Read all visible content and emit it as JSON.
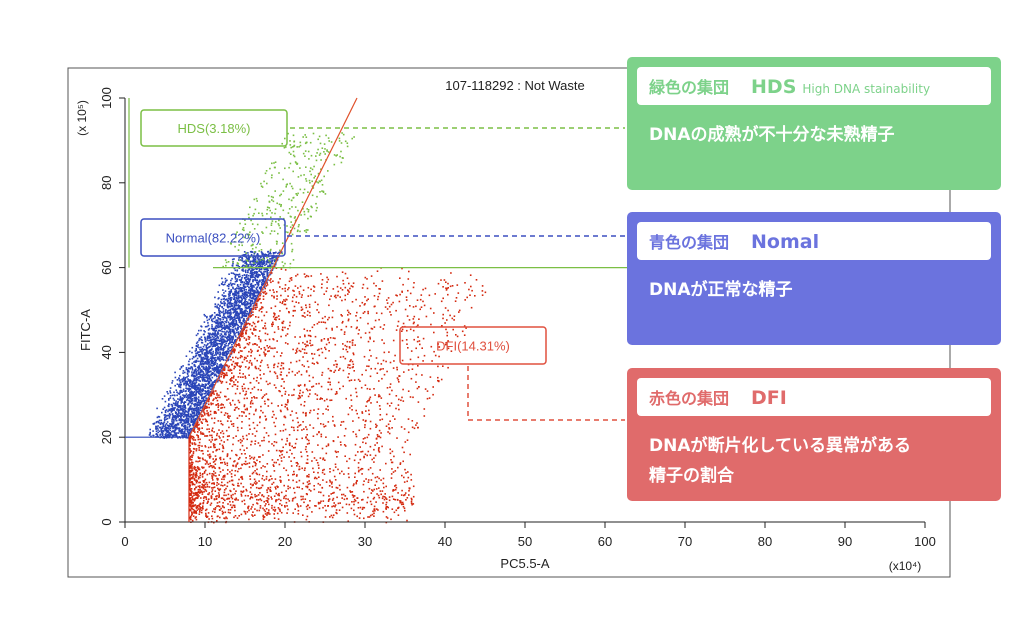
{
  "chart_data": {
    "type": "scatter",
    "title": "107-118292 : Not Waste",
    "x_label": "PC5.5-A",
    "y_label": "FITC-A",
    "x_multiplier": "(x10⁴)",
    "y_multiplier": "(x 10⁵)",
    "xlim": [
      0,
      100
    ],
    "xticks": [
      0,
      10,
      20,
      30,
      40,
      50,
      60,
      70,
      80,
      90,
      100
    ],
    "ylim": [
      0,
      100
    ],
    "yticks": [
      0,
      20,
      40,
      60,
      80,
      100
    ],
    "gates": {
      "hds_y": 60,
      "low_y": 20,
      "left_x": 8,
      "diagonal_top_x": 29
    },
    "annotations": [
      "HDS(3.18%)",
      "Normal(82.22%)",
      "DFI(14.31%)"
    ]
  },
  "callouts": [
    {
      "heading": "緑色の集団",
      "tag": "HDS",
      "sub": "High DNA stainability",
      "body": [
        "DNAの成熟が不十分な未熟精子"
      ]
    },
    {
      "heading": "青色の集団",
      "tag": "Nomal",
      "body": [
        "DNAが正常な精子"
      ]
    },
    {
      "heading": "赤色の集団",
      "tag": "DFI",
      "body": [
        "DNAが断片化している異常がある",
        "精子の割合"
      ]
    }
  ]
}
